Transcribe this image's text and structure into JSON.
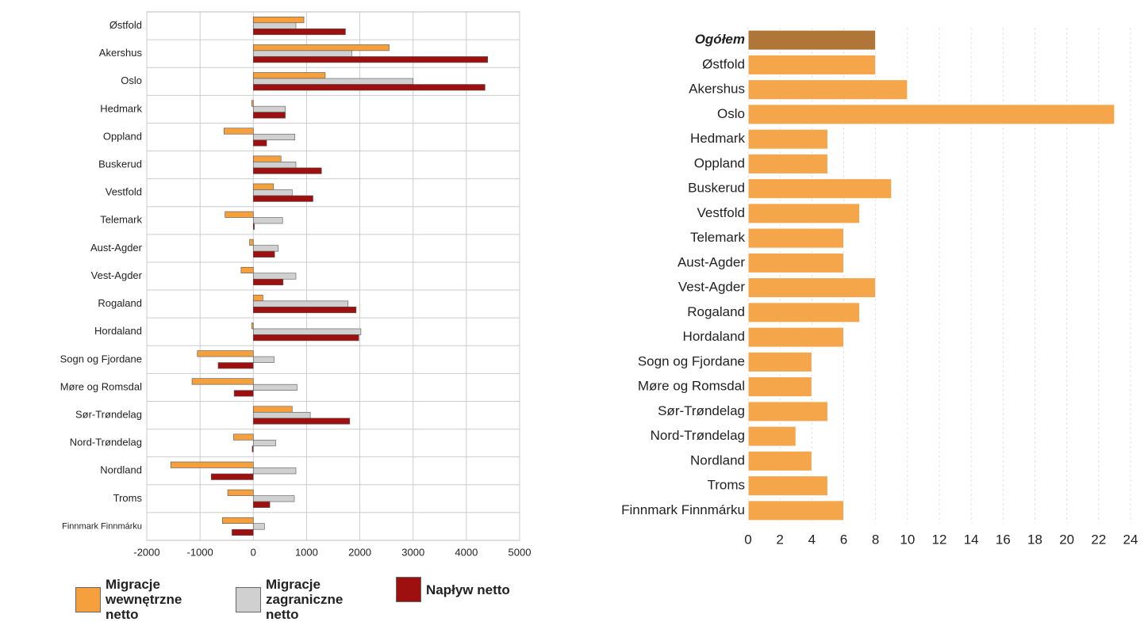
{
  "chart_data": [
    {
      "type": "bar",
      "orientation": "horizontal",
      "categories": [
        "Østfold",
        "Akershus",
        "Oslo",
        "Hedmark",
        "Oppland",
        "Buskerud",
        "Vestfold",
        "Telemark",
        "Aust-Agder",
        "Vest-Agder",
        "Rogaland",
        "Hordaland",
        "Sogn og Fjordane",
        "Møre og Romsdal",
        "Sør-Trøndelag",
        "Nord-Trøndelag",
        "Nordland",
        "Troms",
        "Finnmark Finnmárku"
      ],
      "series": [
        {
          "name": "Migracje wewnętrzne netto",
          "color": "#f5a03c",
          "values": [
            950,
            2550,
            1350,
            -30,
            -550,
            520,
            380,
            -530,
            -70,
            -230,
            180,
            -30,
            -1050,
            -1150,
            730,
            -370,
            -1550,
            -480,
            -580
          ]
        },
        {
          "name": "Migracje zagraniczne netto",
          "color": "#d0d0d0",
          "values": [
            800,
            1850,
            3000,
            600,
            780,
            800,
            730,
            550,
            470,
            800,
            1780,
            2020,
            390,
            820,
            1070,
            420,
            800,
            770,
            210
          ]
        },
        {
          "name": "Napływ netto",
          "color": "#9e1010",
          "values": [
            1730,
            4400,
            4350,
            600,
            250,
            1280,
            1120,
            20,
            400,
            560,
            1930,
            1980,
            -660,
            -360,
            1810,
            -20,
            -790,
            310,
            -400
          ]
        }
      ],
      "xlim": [
        -2000,
        5000
      ],
      "xticks": [
        -2000,
        -1000,
        0,
        1000,
        2000,
        3000,
        4000,
        5000
      ],
      "grid": true
    },
    {
      "type": "bar",
      "orientation": "horizontal",
      "categories": [
        "Ogółem",
        "Østfold",
        "Akershus",
        "Oslo",
        "Hedmark",
        "Oppland",
        "Buskerud",
        "Vestfold",
        "Telemark",
        "Aust-Agder",
        "Vest-Agder",
        "Rogaland",
        "Hordaland",
        "Sogn og Fjordane",
        "Møre og Romsdal",
        "Sør-Trøndelag",
        "Nord-Trøndelag",
        "Nordland",
        "Troms",
        "Finnmark Finnmárku"
      ],
      "values": [
        8,
        8,
        10,
        23,
        5,
        5,
        9,
        7,
        6,
        6,
        8,
        7,
        6,
        4,
        4,
        5,
        3,
        4,
        5,
        6
      ],
      "colors": [
        "#b07638",
        "#f5a54a",
        "#f5a54a",
        "#f5a54a",
        "#f5a54a",
        "#f5a54a",
        "#f5a54a",
        "#f5a54a",
        "#f5a54a",
        "#f5a54a",
        "#f5a54a",
        "#f5a54a",
        "#f5a54a",
        "#f5a54a",
        "#f5a54a",
        "#f5a54a",
        "#f5a54a",
        "#f5a54a",
        "#f5a54a",
        "#f5a54a"
      ],
      "xlim": [
        0,
        24
      ],
      "xticks": [
        0,
        2,
        4,
        6,
        8,
        10,
        12,
        14,
        16,
        18,
        20,
        22,
        24
      ],
      "grid": true
    }
  ]
}
